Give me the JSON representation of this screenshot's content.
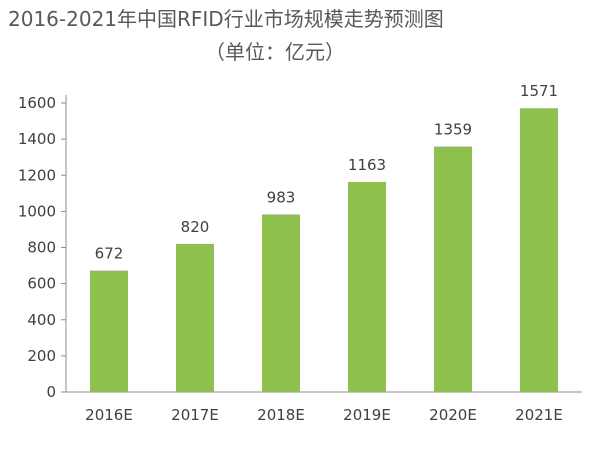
{
  "chart_data": {
    "type": "bar",
    "title": "2016-2021年中国RFID行业市场规模走势预测图",
    "subtitle": "（单位：亿元）",
    "categories": [
      "2016E",
      "2017E",
      "2018E",
      "2019E",
      "2020E",
      "2021E"
    ],
    "values": [
      672,
      820,
      983,
      1163,
      1359,
      1571
    ],
    "ylim": [
      0,
      1600
    ],
    "yticks": [
      0,
      200,
      400,
      600,
      800,
      1000,
      1200,
      1400,
      1600
    ],
    "xlabel": "",
    "ylabel": "",
    "grid": false,
    "bar_color": "#8DC04D",
    "axis_color": "#8C8C8C"
  }
}
